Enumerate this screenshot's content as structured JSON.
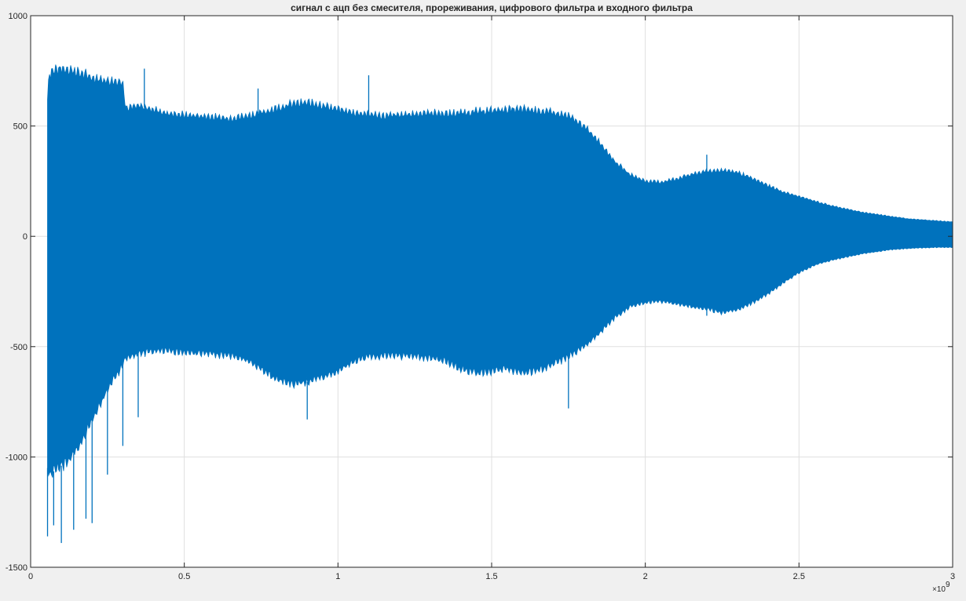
{
  "chart_data": {
    "type": "line",
    "title": "сигнал с ацп без смесителя, прореживания, цифрового фильтра и входного фильтра",
    "xlabel": "",
    "ylabel": "",
    "xlim": [
      0,
      3
    ],
    "ylim": [
      -1500,
      1000
    ],
    "x_exponent_label": "×10",
    "x_exponent_power": "9",
    "x_ticks": [
      0,
      0.5,
      1,
      1.5,
      2,
      2.5,
      3
    ],
    "x_tick_labels": [
      "0",
      "0.5",
      "1",
      "1.5",
      "2",
      "2.5",
      "3"
    ],
    "y_ticks": [
      -1500,
      -1000,
      -500,
      0,
      500,
      1000
    ],
    "y_tick_labels": [
      "-1500",
      "-1000",
      "-500",
      "0",
      "500",
      "1000"
    ],
    "grid": true,
    "legend": "none",
    "series": [
      {
        "color": "#0072BD",
        "envelope": {
          "x": [
            0.055,
            0.06,
            0.08,
            0.12,
            0.16,
            0.2,
            0.25,
            0.3,
            0.31,
            0.35,
            0.4,
            0.45,
            0.5,
            0.55,
            0.6,
            0.65,
            0.7,
            0.75,
            0.8,
            0.85,
            0.9,
            0.95,
            1.0,
            1.05,
            1.1,
            1.15,
            1.2,
            1.25,
            1.3,
            1.35,
            1.4,
            1.45,
            1.5,
            1.55,
            1.6,
            1.65,
            1.7,
            1.75,
            1.8,
            1.85,
            1.9,
            1.95,
            2.0,
            2.05,
            2.1,
            2.15,
            2.2,
            2.25,
            2.3,
            2.35,
            2.4,
            2.45,
            2.5,
            2.55,
            2.6,
            2.65,
            2.7,
            2.75,
            2.8,
            2.85,
            2.9,
            2.95,
            3.0
          ],
          "upper": [
            620,
            740,
            755,
            760,
            740,
            720,
            705,
            700,
            580,
            590,
            575,
            555,
            550,
            545,
            540,
            535,
            545,
            560,
            580,
            600,
            605,
            595,
            575,
            560,
            555,
            545,
            550,
            555,
            560,
            555,
            560,
            565,
            570,
            575,
            575,
            570,
            560,
            545,
            500,
            430,
            340,
            280,
            250,
            245,
            260,
            280,
            295,
            300,
            290,
            260,
            230,
            200,
            180,
            160,
            140,
            125,
            110,
            100,
            90,
            80,
            75,
            70,
            65
          ],
          "lower": [
            -1050,
            -1080,
            -1060,
            -1020,
            -950,
            -830,
            -700,
            -580,
            -550,
            -530,
            -520,
            -520,
            -525,
            -530,
            -535,
            -540,
            -560,
            -600,
            -650,
            -670,
            -660,
            -640,
            -610,
            -570,
            -545,
            -540,
            -540,
            -545,
            -550,
            -565,
            -600,
            -620,
            -610,
            -600,
            -620,
            -610,
            -580,
            -545,
            -500,
            -440,
            -370,
            -320,
            -300,
            -295,
            -305,
            -320,
            -330,
            -345,
            -335,
            -300,
            -260,
            -210,
            -165,
            -130,
            -110,
            -95,
            -80,
            -70,
            -60,
            -55,
            -52,
            -50,
            -50
          ]
        },
        "spikes": [
          {
            "x": 0.055,
            "y": -1360
          },
          {
            "x": 0.075,
            "y": -1310
          },
          {
            "x": 0.1,
            "y": -1390
          },
          {
            "x": 0.14,
            "y": -1330
          },
          {
            "x": 0.18,
            "y": -1280
          },
          {
            "x": 0.2,
            "y": -1300
          },
          {
            "x": 0.25,
            "y": -1080
          },
          {
            "x": 0.3,
            "y": -950
          },
          {
            "x": 0.35,
            "y": -820
          },
          {
            "x": 0.37,
            "y": 760
          },
          {
            "x": 0.74,
            "y": 670
          },
          {
            "x": 0.9,
            "y": -830
          },
          {
            "x": 1.1,
            "y": 730
          },
          {
            "x": 1.75,
            "y": -780
          },
          {
            "x": 2.2,
            "y": 370
          },
          {
            "x": 2.2,
            "y": -360
          }
        ]
      }
    ]
  }
}
